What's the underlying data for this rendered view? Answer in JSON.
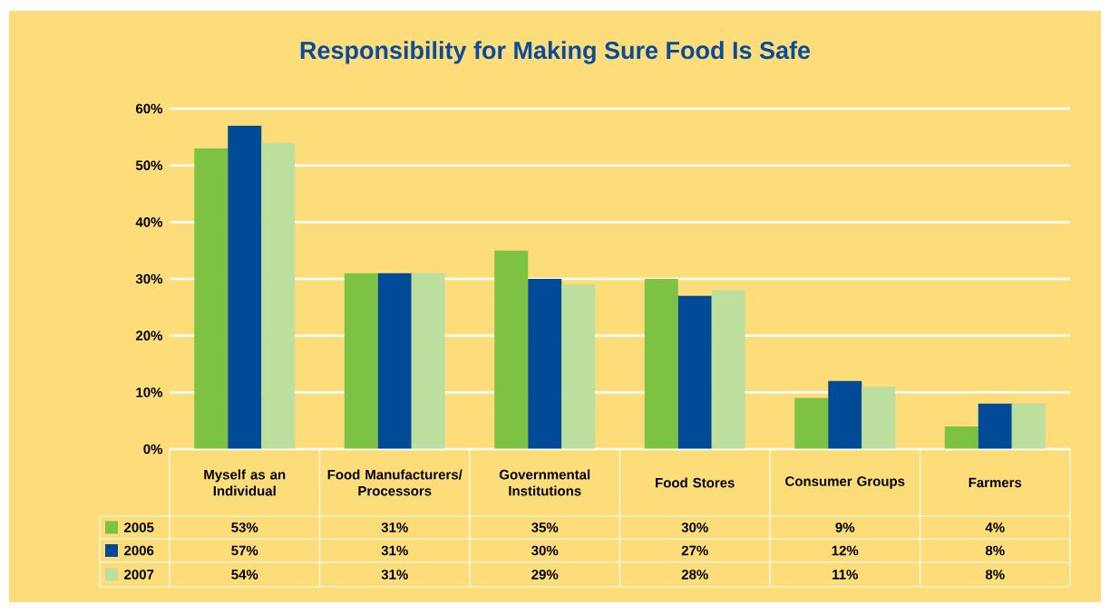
{
  "chart_data": {
    "type": "bar",
    "title": "Responsibility for Making Sure Food Is Safe",
    "categories": [
      "Myself as an Individual",
      "Food Manufacturers/ Processors",
      "Governmental Institutions",
      "Food Stores",
      "Consumer Groups",
      "Farmers"
    ],
    "series": [
      {
        "name": "2005",
        "color": "#7dc243",
        "values": [
          53,
          31,
          35,
          30,
          9,
          4
        ],
        "value_labels": [
          "53%",
          "31%",
          "35%",
          "30%",
          "9%",
          "4%"
        ]
      },
      {
        "name": "2006",
        "color": "#004a97",
        "values": [
          57,
          31,
          30,
          27,
          12,
          8
        ],
        "value_labels": [
          "57%",
          "31%",
          "30%",
          "27%",
          "12%",
          "8%"
        ]
      },
      {
        "name": "2007",
        "color": "#bcde9e",
        "values": [
          54,
          31,
          29,
          28,
          11,
          8
        ],
        "value_labels": [
          "54%",
          "31%",
          "29%",
          "28%",
          "11%",
          "8%"
        ]
      }
    ],
    "ylim": [
      0,
      60
    ],
    "yticks": [
      {
        "value": 0,
        "label": "0%"
      },
      {
        "value": 10,
        "label": "10%"
      },
      {
        "value": 20,
        "label": "20%"
      },
      {
        "value": 30,
        "label": "30%"
      },
      {
        "value": 40,
        "label": "40%"
      },
      {
        "value": 50,
        "label": "50%"
      },
      {
        "value": 60,
        "label": "60%"
      }
    ],
    "grid": "y",
    "legend": "bottom"
  }
}
